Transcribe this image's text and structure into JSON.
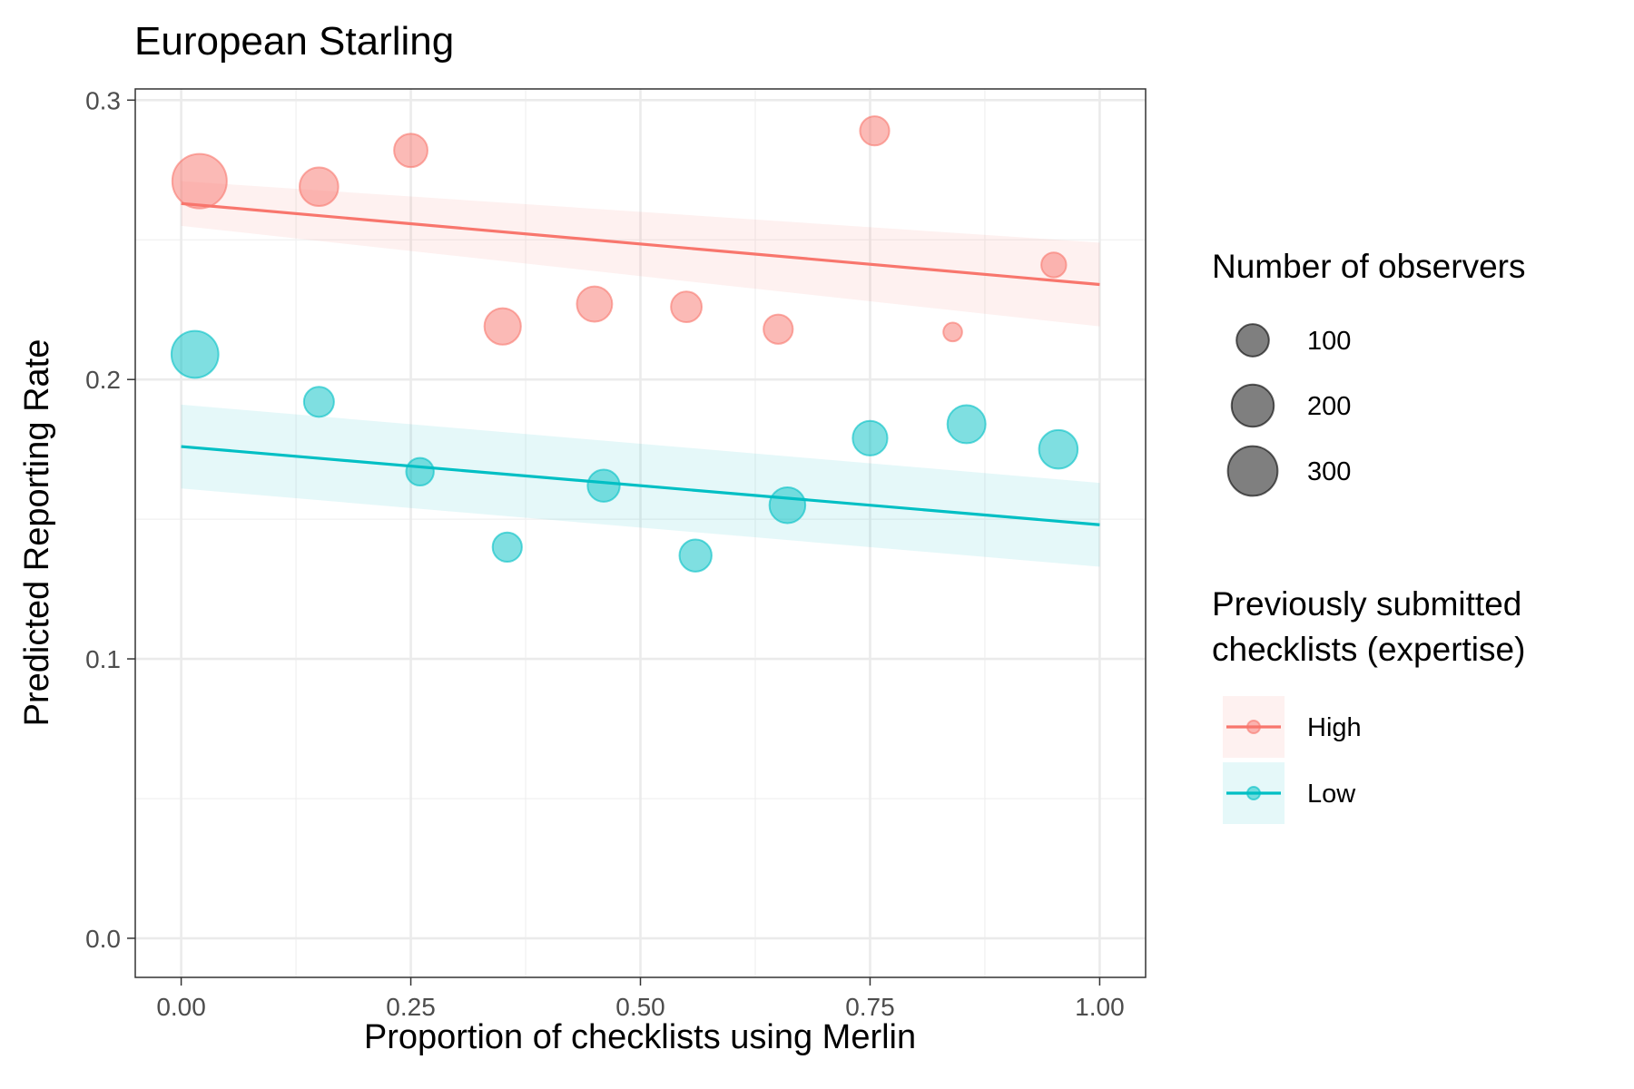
{
  "chart_data": {
    "type": "scatter",
    "title": "European Starling",
    "xlabel": "Proportion of checklists using Merlin",
    "ylabel": "Predicted Reporting Rate",
    "xlim": [
      -0.05,
      1.05
    ],
    "ylim": [
      -0.014,
      0.304
    ],
    "x_ticks": [
      0,
      0.25,
      0.5,
      0.75,
      1
    ],
    "x_tick_labels": [
      "0.00",
      "0.25",
      "0.50",
      "0.75",
      "1.00"
    ],
    "y_ticks": [
      0,
      0.1,
      0.2,
      0.3
    ],
    "y_tick_labels": [
      "0.0",
      "0.1",
      "0.2",
      "0.3"
    ],
    "grid": true,
    "series": [
      {
        "name": "High",
        "color": "#F8766D",
        "points": [
          {
            "x": 0.02,
            "y": 0.271,
            "observers": 330
          },
          {
            "x": 0.15,
            "y": 0.269,
            "observers": 140
          },
          {
            "x": 0.25,
            "y": 0.282,
            "observers": 95
          },
          {
            "x": 0.35,
            "y": 0.219,
            "observers": 120
          },
          {
            "x": 0.45,
            "y": 0.227,
            "observers": 110
          },
          {
            "x": 0.55,
            "y": 0.226,
            "observers": 75
          },
          {
            "x": 0.65,
            "y": 0.218,
            "observers": 65
          },
          {
            "x": 0.755,
            "y": 0.289,
            "observers": 65
          },
          {
            "x": 0.84,
            "y": 0.217,
            "observers": 15
          },
          {
            "x": 0.95,
            "y": 0.241,
            "observers": 40
          }
        ],
        "trend": {
          "x": [
            0,
            1
          ],
          "y": [
            0.263,
            0.234
          ]
        },
        "ci_lower": [
          0.255,
          0.219
        ],
        "ci_upper": [
          0.271,
          0.249
        ]
      },
      {
        "name": "Low",
        "color": "#00BFC4",
        "points": [
          {
            "x": 0.015,
            "y": 0.209,
            "observers": 230
          },
          {
            "x": 0.15,
            "y": 0.192,
            "observers": 70
          },
          {
            "x": 0.26,
            "y": 0.167,
            "observers": 55
          },
          {
            "x": 0.355,
            "y": 0.14,
            "observers": 65
          },
          {
            "x": 0.46,
            "y": 0.162,
            "observers": 85
          },
          {
            "x": 0.56,
            "y": 0.137,
            "observers": 85
          },
          {
            "x": 0.66,
            "y": 0.155,
            "observers": 115
          },
          {
            "x": 0.75,
            "y": 0.179,
            "observers": 105
          },
          {
            "x": 0.855,
            "y": 0.184,
            "observers": 135
          },
          {
            "x": 0.955,
            "y": 0.175,
            "observers": 140
          }
        ],
        "trend": {
          "x": [
            0,
            1
          ],
          "y": [
            0.176,
            0.148
          ]
        },
        "ci_lower": [
          0.161,
          0.133
        ],
        "ci_upper": [
          0.191,
          0.163
        ]
      }
    ],
    "size_legend": {
      "title": "Number of observers",
      "values": [
        100,
        200,
        300
      ],
      "labels": [
        "100",
        "200",
        "300"
      ]
    },
    "color_legend": {
      "title_lines": [
        "Previously submitted",
        "checklists (expertise)"
      ],
      "entries": [
        "High",
        "Low"
      ]
    }
  }
}
